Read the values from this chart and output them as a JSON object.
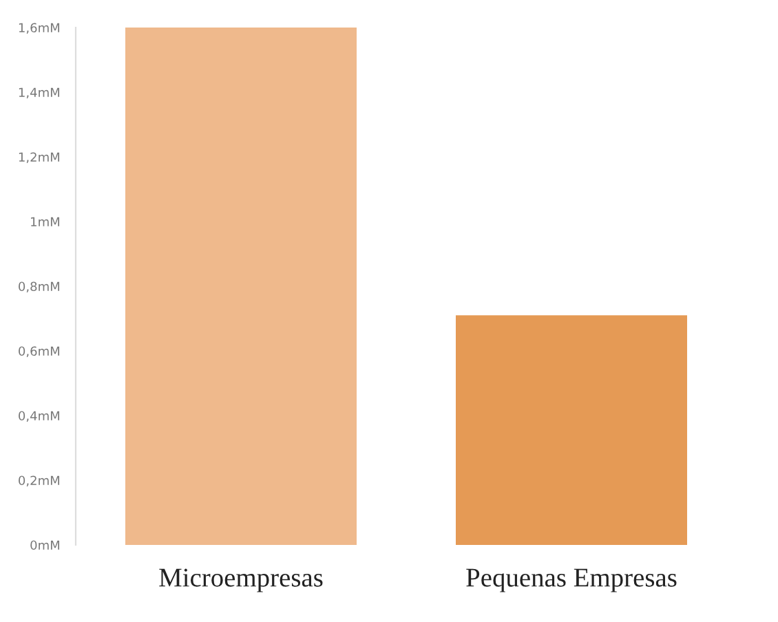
{
  "chart_data": {
    "type": "bar",
    "categories": [
      "Microempresas",
      "Pequenas Empresas"
    ],
    "values": [
      1.6,
      0.71
    ],
    "colors": [
      "#efb98c",
      "#e59a55"
    ],
    "ylim": [
      0,
      1.6
    ],
    "yticks": [
      {
        "value": 0,
        "label": "0mM"
      },
      {
        "value": 0.2,
        "label": "0,2mM"
      },
      {
        "value": 0.4,
        "label": "0,4mM"
      },
      {
        "value": 0.6,
        "label": "0,6mM"
      },
      {
        "value": 0.8,
        "label": "0,8mM"
      },
      {
        "value": 1,
        "label": "1mM"
      },
      {
        "value": 1.2,
        "label": "1,2mM"
      },
      {
        "value": 1.4,
        "label": "1,4mM"
      },
      {
        "value": 1.6,
        "label": "1,6mM"
      }
    ],
    "grid": false,
    "legend": false
  }
}
